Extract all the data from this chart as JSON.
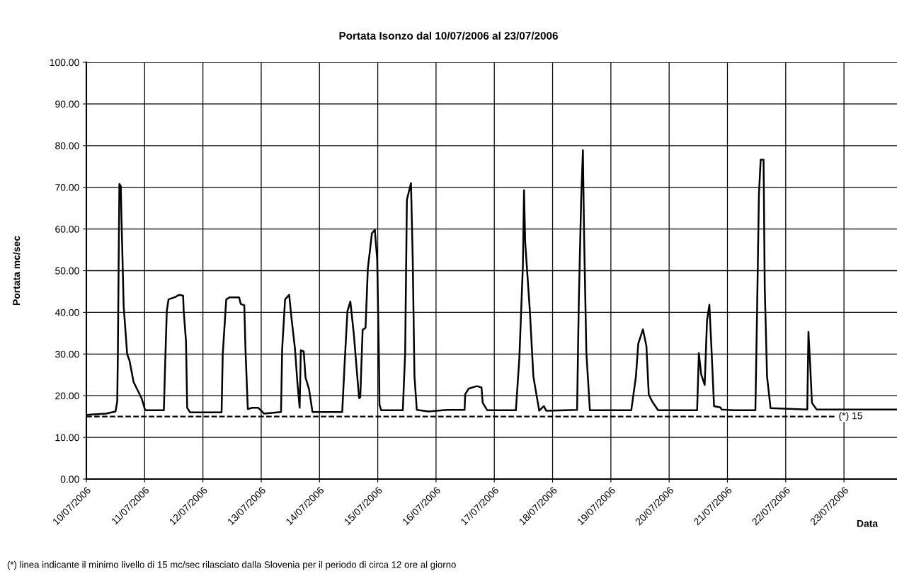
{
  "chart_data": {
    "type": "line",
    "title": "Portata Isonzo dal 10/07/2006 al 23/07/2006",
    "xlabel": "Data",
    "ylabel": "Portata mc/sec",
    "annotations": [
      "(*) linea indicante il minimo livello di 15 mc/sec rilasciato dalla Slovenia per il periodo di circa 12 ore al giorno"
    ],
    "series": [
      {
        "color": "#000000",
        "x": [
          "2006-07-10T00:00",
          "2006-07-10T08:10",
          "2006-07-10T12:00",
          "2006-07-10T12:43",
          "2006-07-10T12:58",
          "2006-07-10T13:19",
          "2006-07-10T13:36",
          "2006-07-10T14:10",
          "2006-07-10T14:24",
          "2006-07-10T15:22",
          "2006-07-10T16:48",
          "2006-07-10T17:46",
          "2006-07-10T19:26",
          "2006-07-10T21:22",
          "2006-07-10T22:48",
          "2006-07-11T00:14",
          "2006-07-11T07:55",
          "2006-07-11T08:24",
          "2006-07-11T09:07",
          "2006-07-11T09:50",
          "2006-07-11T12:43",
          "2006-07-11T14:10",
          "2006-07-11T15:50",
          "2006-07-11T16:05",
          "2006-07-11T17:02",
          "2006-07-11T17:31",
          "2006-07-11T18:43",
          "2006-07-12T07:41",
          "2006-07-12T08:10",
          "2006-07-12T09:36",
          "2006-07-12T11:02",
          "2006-07-12T14:53",
          "2006-07-12T15:36",
          "2006-07-12T17:02",
          "2006-07-12T17:31",
          "2006-07-12T18:29",
          "2006-07-12T20:24",
          "2006-07-12T22:48",
          "2006-07-13T01:12",
          "2006-07-13T08:10",
          "2006-07-13T08:38",
          "2006-07-13T09:50",
          "2006-07-13T11:31",
          "2006-07-13T12:29",
          "2006-07-13T13:55",
          "2006-07-13T14:53",
          "2006-07-13T15:50",
          "2006-07-13T16:19",
          "2006-07-13T17:31",
          "2006-07-13T18:14",
          "2006-07-13T19:41",
          "2006-07-13T21:07",
          "2006-07-14T09:22",
          "2006-07-14T10:19",
          "2006-07-14T11:31",
          "2006-07-14T12:43",
          "2006-07-14T14:10",
          "2006-07-14T15:36",
          "2006-07-14T16:19",
          "2006-07-14T16:48",
          "2006-07-14T17:46",
          "2006-07-14T18:58",
          "2006-07-14T19:55",
          "2006-07-14T21:36",
          "2006-07-14T22:48",
          "2006-07-14T23:46",
          "2006-07-15T00:29",
          "2006-07-15T00:43",
          "2006-07-15T01:26",
          "2006-07-15T10:19",
          "2006-07-15T11:17",
          "2006-07-15T12:00",
          "2006-07-15T13:41",
          "2006-07-15T14:24",
          "2006-07-15T15:07",
          "2006-07-15T16:05",
          "2006-07-15T20:53",
          "2006-07-16T04:34",
          "2006-07-16T11:46",
          "2006-07-16T12:00",
          "2006-07-16T13:26",
          "2006-07-16T16:48",
          "2006-07-16T18:43",
          "2006-07-16T19:12",
          "2006-07-16T21:07",
          "2006-07-17T08:53",
          "2006-07-17T10:19",
          "2006-07-17T11:46",
          "2006-07-17T12:14",
          "2006-07-17T12:43",
          "2006-07-17T14:38",
          "2006-07-17T16:05",
          "2006-07-17T18:29",
          "2006-07-17T20:24",
          "2006-07-17T21:22",
          "2006-07-18T10:05",
          "2006-07-18T10:48",
          "2006-07-18T11:46",
          "2006-07-18T12:29",
          "2006-07-18T12:58",
          "2006-07-18T13:55",
          "2006-07-18T15:22",
          "2006-07-19T08:24",
          "2006-07-19T10:19",
          "2006-07-19T11:17",
          "2006-07-19T13:12",
          "2006-07-19T14:38",
          "2006-07-19T15:36",
          "2006-07-19T17:02",
          "2006-07-19T19:26",
          "2006-07-20T11:31",
          "2006-07-20T12:14",
          "2006-07-20T13:12",
          "2006-07-20T14:38",
          "2006-07-20T15:36",
          "2006-07-20T16:34",
          "2006-07-20T17:31",
          "2006-07-20T18:29",
          "2006-07-20T21:07",
          "2006-07-20T21:36",
          "2006-07-21T02:24",
          "2006-07-21T11:31",
          "2006-07-21T12:14",
          "2006-07-21T12:58",
          "2006-07-21T13:41",
          "2006-07-21T14:53",
          "2006-07-21T15:22",
          "2006-07-21T16:19",
          "2006-07-21T17:46",
          "2006-07-22T08:53",
          "2006-07-22T09:22",
          "2006-07-22T10:05",
          "2006-07-22T10:48",
          "2006-07-22T12:43",
          "2006-07-23T21:50"
        ],
        "values": [
          15.4,
          15.7,
          16.2,
          18.7,
          30,
          53.3,
          70.8,
          70.3,
          64,
          41.4,
          30,
          28.4,
          23.3,
          21,
          19.3,
          16.5,
          16.5,
          26.7,
          40.3,
          43.1,
          43.7,
          44.2,
          44,
          40.3,
          33,
          17.1,
          16,
          16,
          30,
          43.1,
          43.6,
          43.6,
          42,
          41.7,
          31.2,
          16.8,
          17.1,
          17.1,
          15.7,
          16.1,
          31.2,
          43.1,
          44.2,
          38.6,
          31.2,
          23.3,
          17.1,
          30.9,
          30.6,
          24.4,
          21.6,
          16.1,
          16.1,
          27.3,
          40.3,
          42.6,
          34.6,
          24.4,
          19.4,
          19.6,
          35.8,
          36.3,
          50.5,
          59,
          59.8,
          52.7,
          29,
          17.8,
          16.5,
          16.5,
          30.2,
          67,
          71,
          52.9,
          24.6,
          16.6,
          16.2,
          16.6,
          16.6,
          20.3,
          21.7,
          22.3,
          22,
          18.3,
          16.5,
          16.5,
          29.1,
          51.2,
          69.3,
          56.8,
          40.4,
          24.6,
          16.4,
          17.5,
          16.4,
          16.6,
          42.7,
          67,
          78.9,
          58.5,
          30.2,
          16.5,
          16.5,
          24.6,
          32.5,
          35.9,
          31.9,
          20.3,
          18.6,
          16.5,
          16.5,
          30.2,
          25.1,
          22.6,
          38.1,
          41.8,
          30.2,
          17.5,
          17.2,
          16.7,
          16.5,
          16.5,
          41,
          68.1,
          76.6,
          76.6,
          46,
          24.6,
          17,
          16.7,
          35.3,
          27.4,
          18.3,
          16.7,
          16.7
        ]
      }
    ],
    "xlim": [
      "2006-07-10T00:00",
      "2006-07-23T21:50"
    ],
    "xticks": [
      {
        "value": "2006-07-10",
        "label": "10/07/2006"
      },
      {
        "value": "2006-07-11",
        "label": "11/07/2006"
      },
      {
        "value": "2006-07-12",
        "label": "12/07/2006"
      },
      {
        "value": "2006-07-13",
        "label": "13/07/2006"
      },
      {
        "value": "2006-07-14",
        "label": "14/07/2006"
      },
      {
        "value": "2006-07-15",
        "label": "15/07/2006"
      },
      {
        "value": "2006-07-16",
        "label": "16/07/2006"
      },
      {
        "value": "2006-07-17",
        "label": "17/07/2006"
      },
      {
        "value": "2006-07-18",
        "label": "18/07/2006"
      },
      {
        "value": "2006-07-19",
        "label": "19/07/2006"
      },
      {
        "value": "2006-07-20",
        "label": "20/07/2006"
      },
      {
        "value": "2006-07-21",
        "label": "21/07/2006"
      },
      {
        "value": "2006-07-22",
        "label": "22/07/2006"
      },
      {
        "value": "2006-07-23",
        "label": "23/07/2006"
      }
    ],
    "ylim": [
      0,
      100
    ],
    "yticks": [
      {
        "value": 0,
        "label": "0.00"
      },
      {
        "value": 10,
        "label": "10.00"
      },
      {
        "value": 20,
        "label": "20.00"
      },
      {
        "value": 30,
        "label": "30.00"
      },
      {
        "value": 40,
        "label": "40.00"
      },
      {
        "value": 50,
        "label": "50.00"
      },
      {
        "value": 60,
        "label": "60.00"
      },
      {
        "value": 70,
        "label": "70.00"
      },
      {
        "value": 80,
        "label": "80.00"
      },
      {
        "value": 90,
        "label": "90.00"
      },
      {
        "value": 100,
        "label": "100.00"
      }
    ],
    "ref_lines": [
      {
        "axis": "y",
        "value": 15,
        "label": "(*) 15",
        "color": "#000000",
        "line_style": "dashed"
      }
    ],
    "grid": true,
    "legend": false,
    "marker": "none",
    "line_style": "solid"
  }
}
